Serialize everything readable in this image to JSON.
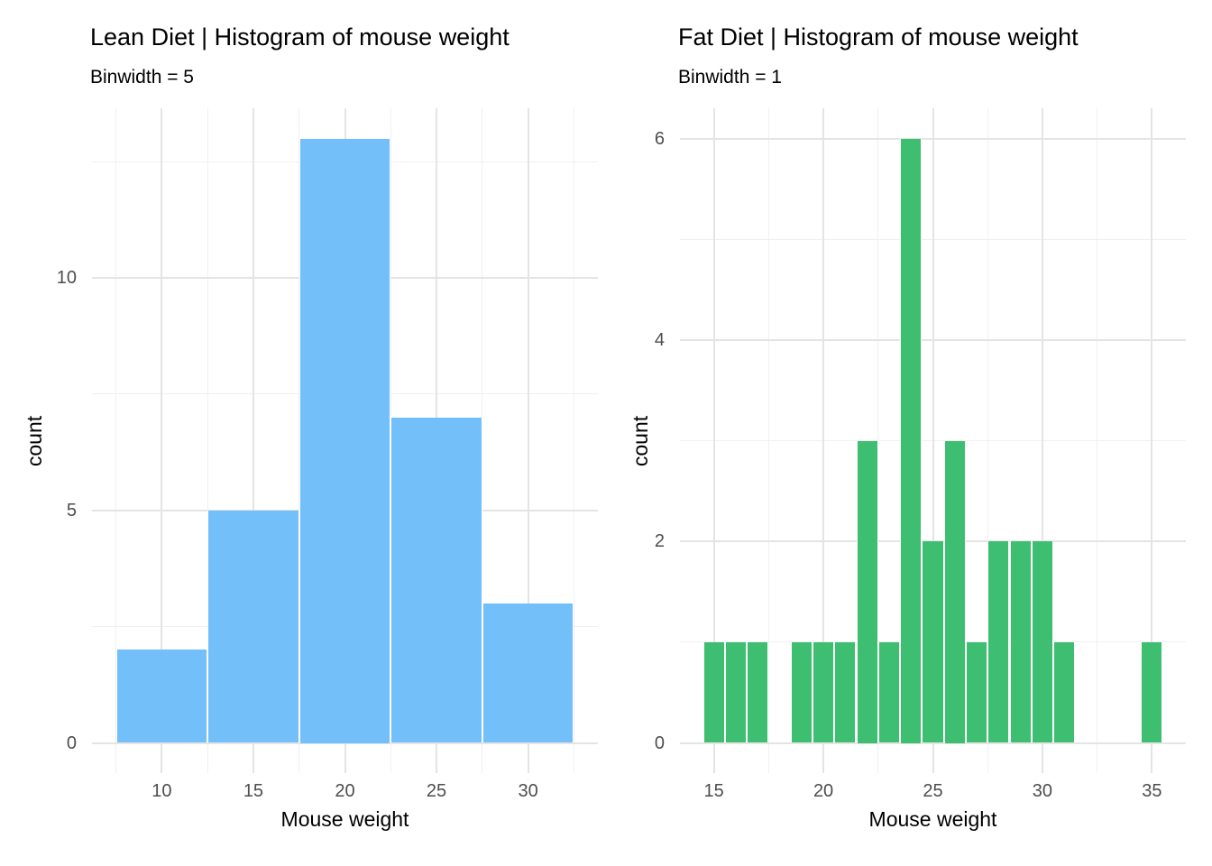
{
  "page_background": "#ffffff",
  "style": {
    "grid_major_color": "#e4e4e4",
    "grid_minor_color": "#f0f0f0",
    "tick_label_color": "#4d4d4d",
    "title_color": "#000000",
    "bar_separator_color": "#ffffff"
  },
  "chart_data": [
    {
      "type": "bar",
      "variant": "histogram",
      "title": "Lean Diet | Histogram of mouse weight",
      "subtitle": "Binwidth = 5",
      "xlabel": "Mouse weight",
      "ylabel": "count",
      "binwidth": 5,
      "bar_color": "#73bff9",
      "categories": [
        10,
        15,
        20,
        25,
        30
      ],
      "values": [
        2,
        5,
        13,
        7,
        3
      ],
      "x_ticks": [
        10,
        15,
        20,
        25,
        30
      ],
      "x_minor_ticks": [
        7.5,
        12.5,
        17.5,
        22.5,
        27.5,
        32.5
      ],
      "y_ticks": [
        0,
        5,
        10
      ],
      "y_minor_ticks": [
        2.5,
        7.5,
        12.5
      ],
      "xlim": [
        6.19,
        33.81
      ],
      "ylim": [
        -0.65,
        13.65
      ],
      "grid": true,
      "legend": false
    },
    {
      "type": "bar",
      "variant": "histogram",
      "title": "Fat Diet | Histogram of mouse weight",
      "subtitle": "Binwidth = 1",
      "xlabel": "Mouse weight",
      "ylabel": "count",
      "binwidth": 1,
      "bar_color": "#3dbe70",
      "categories": [
        15,
        16,
        17,
        19,
        20,
        21,
        22,
        23,
        24,
        25,
        26,
        27,
        28,
        29,
        30,
        31,
        35
      ],
      "values": [
        1,
        1,
        1,
        1,
        1,
        1,
        3,
        1,
        6,
        2,
        3,
        1,
        2,
        2,
        2,
        1,
        1
      ],
      "x_ticks": [
        15,
        20,
        25,
        30,
        35
      ],
      "x_minor_ticks": [
        17.5,
        22.5,
        27.5,
        32.5
      ],
      "y_ticks": [
        0,
        2,
        4,
        6
      ],
      "y_minor_ticks": [
        1,
        3,
        5
      ],
      "xlim": [
        13.45,
        36.55
      ],
      "ylim": [
        -0.3,
        6.3
      ],
      "grid": true,
      "legend": false
    }
  ]
}
